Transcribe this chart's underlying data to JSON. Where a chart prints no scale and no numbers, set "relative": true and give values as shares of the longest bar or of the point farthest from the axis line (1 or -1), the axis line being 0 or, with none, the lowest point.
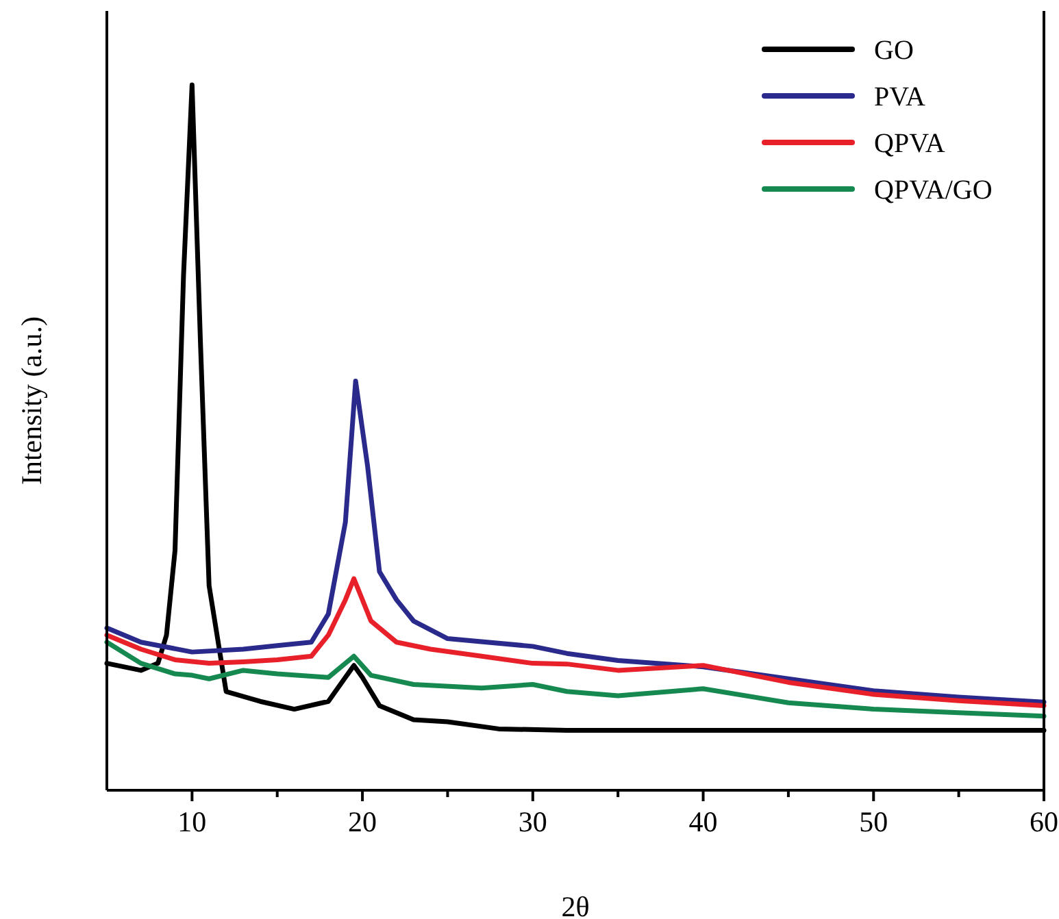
{
  "chart_data": {
    "type": "line",
    "relative": true,
    "xlabel": "2θ",
    "ylabel": "Intensity (a.u.)",
    "xlim": [
      5,
      60
    ],
    "xticks": [
      10,
      {
        "value": 15,
        "label": null
      },
      20,
      {
        "value": 25,
        "label": null
      },
      30,
      {
        "value": 35,
        "label": null
      },
      40,
      {
        "value": 45,
        "label": null
      },
      50,
      {
        "value": 55,
        "label": null
      },
      60
    ],
    "legend": "top right",
    "line_style": "solid",
    "marker": "none",
    "grid": false,
    "series": [
      {
        "name": "GO",
        "color": "#000000",
        "x": [
          5,
          7,
          8,
          8.5,
          9,
          9.5,
          10,
          10.5,
          11,
          12,
          14,
          16,
          18,
          19.5,
          20,
          21,
          23,
          25,
          28,
          32,
          40,
          50,
          60
        ],
        "values": [
          0.18,
          0.17,
          0.18,
          0.22,
          0.34,
          0.73,
          1.0,
          0.63,
          0.29,
          0.14,
          0.126,
          0.115,
          0.126,
          0.177,
          0.16,
          0.12,
          0.1,
          0.097,
          0.087,
          0.085,
          0.085,
          0.085,
          0.085
        ]
      },
      {
        "name": "PVA",
        "color": "#2a2a8c",
        "x": [
          5,
          7,
          10,
          13,
          15,
          17,
          18,
          19,
          19.6,
          20.3,
          21,
          22,
          23,
          25,
          30,
          32,
          35,
          40,
          45,
          50,
          55,
          60
        ],
        "values": [
          0.23,
          0.21,
          0.196,
          0.2,
          0.205,
          0.21,
          0.25,
          0.38,
          0.58,
          0.46,
          0.31,
          0.27,
          0.24,
          0.215,
          0.204,
          0.194,
          0.184,
          0.175,
          0.158,
          0.141,
          0.132,
          0.125
        ]
      },
      {
        "name": "QPVA",
        "color": "#e8202a",
        "x": [
          5,
          7,
          9,
          11,
          13,
          15,
          17,
          18,
          19,
          19.5,
          20.5,
          22,
          24,
          27,
          30,
          32,
          35,
          40,
          45,
          50,
          55,
          60
        ],
        "values": [
          0.22,
          0.2,
          0.185,
          0.18,
          0.182,
          0.185,
          0.19,
          0.22,
          0.27,
          0.3,
          0.24,
          0.21,
          0.2,
          0.19,
          0.18,
          0.179,
          0.17,
          0.177,
          0.153,
          0.136,
          0.127,
          0.12
        ]
      },
      {
        "name": "QPVA/GO",
        "color": "#15894f",
        "x": [
          5,
          7,
          9,
          10,
          11,
          13,
          15,
          18,
          19.5,
          20.5,
          23,
          27,
          30,
          32,
          35,
          40,
          45,
          50,
          55,
          60
        ],
        "values": [
          0.21,
          0.18,
          0.165,
          0.163,
          0.158,
          0.17,
          0.165,
          0.16,
          0.19,
          0.163,
          0.15,
          0.145,
          0.15,
          0.14,
          0.134,
          0.144,
          0.124,
          0.115,
          0.11,
          0.105
        ]
      }
    ]
  }
}
